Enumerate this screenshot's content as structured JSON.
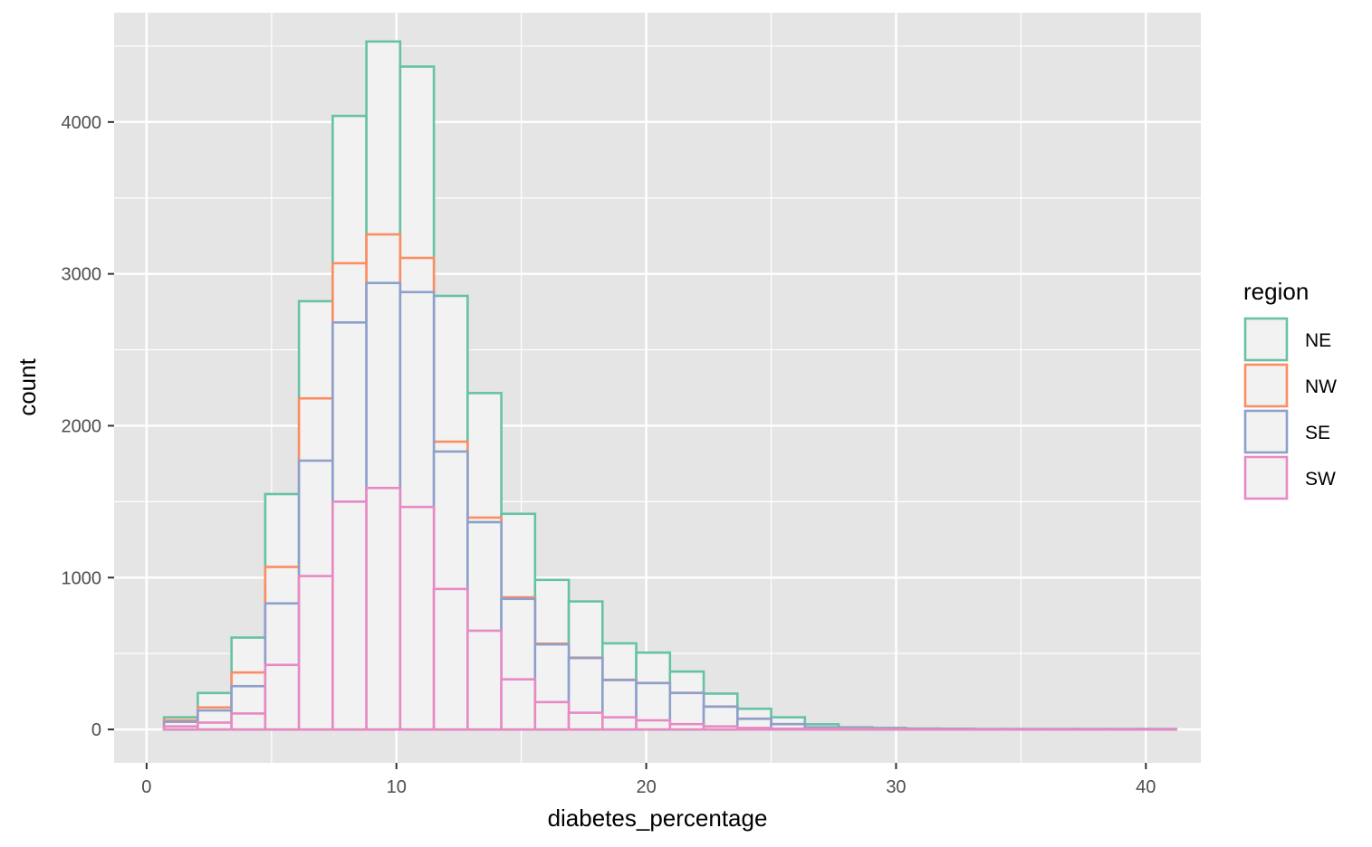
{
  "chart_data": {
    "type": "bar",
    "subtype": "histogram-stacked-outline",
    "title": "",
    "xlabel": "diabetes_percentage",
    "ylabel": "count",
    "x_bin_start": 0.7,
    "x_bin_width": 1.35,
    "xlim": [
      -1.3,
      42.2
    ],
    "ylim": [
      -220,
      4720
    ],
    "x_ticks": [
      0,
      10,
      20,
      30,
      40
    ],
    "x_tick_labels": [
      "0",
      "10",
      "20",
      "30",
      "40"
    ],
    "y_ticks": [
      0,
      1000,
      2000,
      3000,
      4000
    ],
    "y_tick_labels": [
      "0",
      "1000",
      "2000",
      "3000",
      "4000"
    ],
    "grid": true,
    "legend": {
      "title": "region",
      "position": "right"
    },
    "series": [
      {
        "name": "SW",
        "color": "#E78AC3",
        "values": [
          20,
          45,
          105,
          425,
          1010,
          1500,
          1590,
          1465,
          925,
          650,
          330,
          180,
          110,
          80,
          60,
          35,
          20,
          10,
          5,
          4,
          3,
          2,
          1,
          1,
          1,
          1,
          1,
          1,
          1,
          1
        ]
      },
      {
        "name": "SE",
        "color": "#8DA0CB",
        "values": [
          30,
          80,
          180,
          405,
          760,
          1180,
          1350,
          1415,
          905,
          715,
          530,
          380,
          360,
          245,
          245,
          205,
          130,
          60,
          30,
          10,
          6,
          5,
          3,
          2,
          1,
          1,
          1,
          1,
          1,
          1
        ]
      },
      {
        "name": "NW",
        "color": "#FC8D62",
        "values": [
          10,
          20,
          90,
          240,
          410,
          390,
          320,
          225,
          65,
          30,
          10,
          5,
          3,
          2,
          1,
          1,
          1,
          1,
          0,
          0,
          0,
          0,
          0,
          0,
          0,
          0,
          0,
          0,
          0,
          0
        ]
      },
      {
        "name": "NE",
        "color": "#66C2A5",
        "values": [
          20,
          95,
          230,
          480,
          640,
          970,
          1270,
          1260,
          960,
          820,
          550,
          420,
          370,
          240,
          200,
          140,
          85,
          65,
          45,
          20,
          5,
          3,
          2,
          2,
          1,
          1,
          1,
          1,
          1,
          1
        ]
      }
    ]
  },
  "colors": {
    "panel_background": "#E5E5E5",
    "grid_line": "#FFFFFF",
    "bar_fill": "#F2F2F2",
    "tick_text": "#4D4D4D"
  }
}
